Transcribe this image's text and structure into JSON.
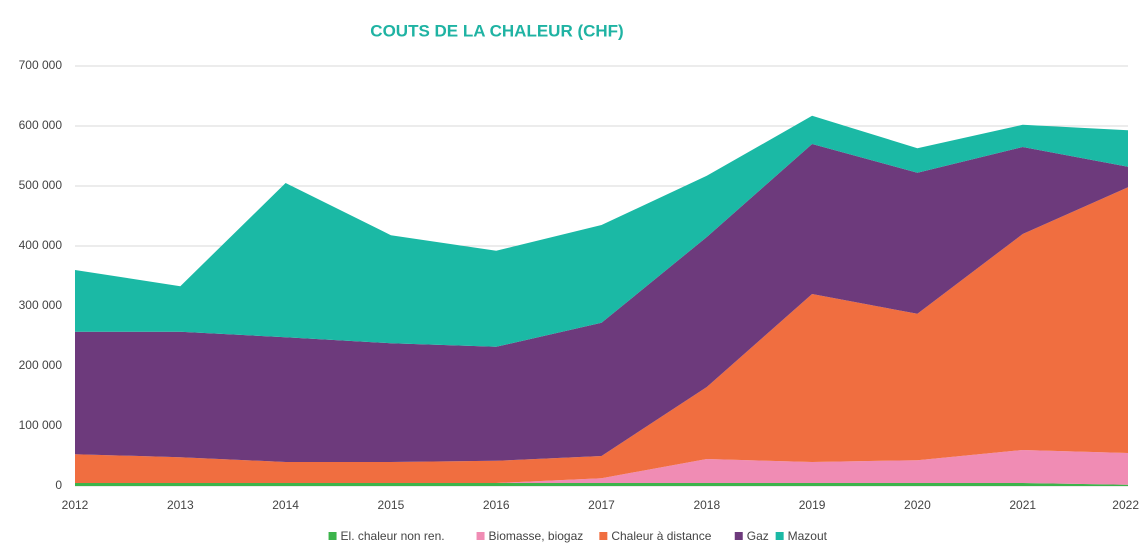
{
  "chart_data": {
    "type": "stacked_area",
    "title": "COUTS DE LA CHALEUR (CHF)",
    "categories": [
      "2012",
      "2013",
      "2014",
      "2015",
      "2016",
      "2017",
      "2018",
      "2019",
      "2020",
      "2021",
      "2022"
    ],
    "series": [
      {
        "name": "El. chaleur non ren.",
        "color": "#3cb44b",
        "values": [
          5000,
          5000,
          5000,
          5000,
          5000,
          5000,
          5000,
          5000,
          5000,
          5000,
          2000
        ]
      },
      {
        "name": "Biomasse, biogaz",
        "color": "#f08cb4",
        "values": [
          0,
          0,
          0,
          0,
          0,
          8000,
          40000,
          35000,
          38000,
          55000,
          53000
        ]
      },
      {
        "name": "Chaleur à distance",
        "color": "#f06e40",
        "values": [
          48000,
          43000,
          35000,
          35000,
          37000,
          37000,
          120000,
          280000,
          244000,
          360000,
          443000
        ]
      },
      {
        "name": "Gaz",
        "color": "#6d3a7c",
        "values": [
          204000,
          209000,
          208000,
          198000,
          190000,
          222000,
          250000,
          250000,
          235000,
          145000,
          34000
        ]
      },
      {
        "name": "Mazout",
        "color": "#1bb9a5",
        "values": [
          103000,
          76000,
          257000,
          180000,
          160000,
          163000,
          102000,
          47000,
          41000,
          37000,
          61000
        ]
      }
    ],
    "ylim": [
      0,
      700000
    ],
    "yticks": [
      0,
      {
        "value": 100000,
        "label": "100 000"
      },
      {
        "value": 200000,
        "label": "200 000"
      },
      {
        "value": 300000,
        "label": "300 000"
      },
      {
        "value": 400000,
        "label": "400 000"
      },
      {
        "value": 500000,
        "label": "500 000"
      },
      {
        "value": 600000,
        "label": "600 000"
      },
      {
        "value": 700000,
        "label": "700 000"
      }
    ],
    "grid": true,
    "legend": "bottom"
  }
}
